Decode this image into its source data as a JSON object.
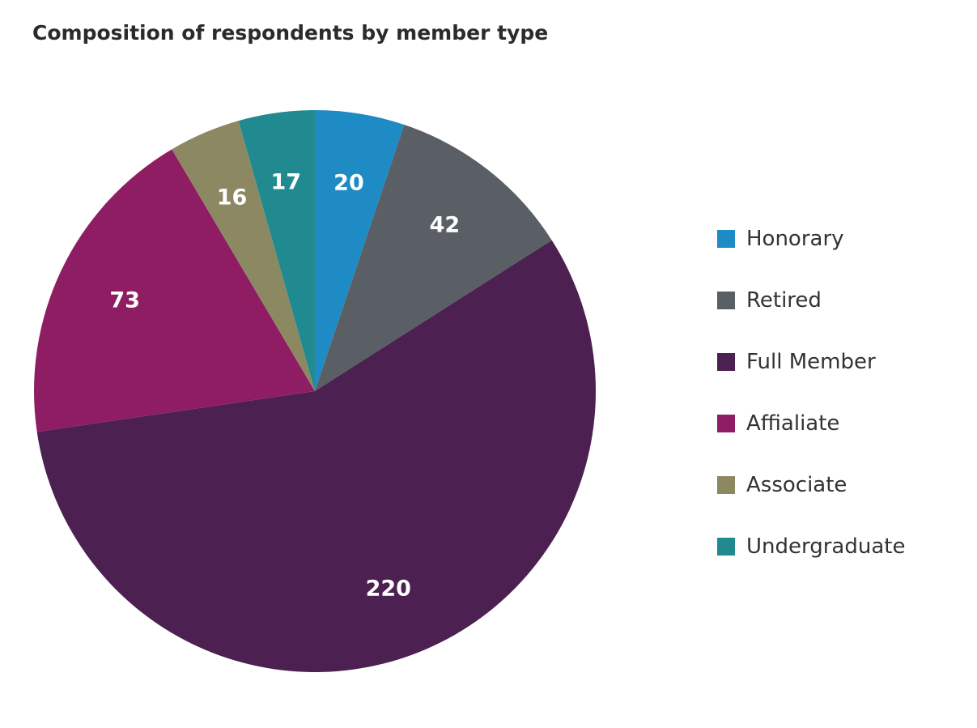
{
  "chart_data": {
    "type": "pie",
    "title": "Composition of respondents by member type",
    "legend_position": "right",
    "slices": [
      {
        "label": "Honorary",
        "value": 20,
        "color": "#1f8bc4"
      },
      {
        "label": "Retired",
        "value": 42,
        "color": "#5a5f66"
      },
      {
        "label": "Full Member",
        "value": 220,
        "color": "#4c2050"
      },
      {
        "label": "Affialiate",
        "value": 73,
        "color": "#8f1d63"
      },
      {
        "label": "Associate",
        "value": 16,
        "color": "#8c8862"
      },
      {
        "label": "Undergraduate",
        "value": 17,
        "color": "#218a90"
      }
    ]
  }
}
